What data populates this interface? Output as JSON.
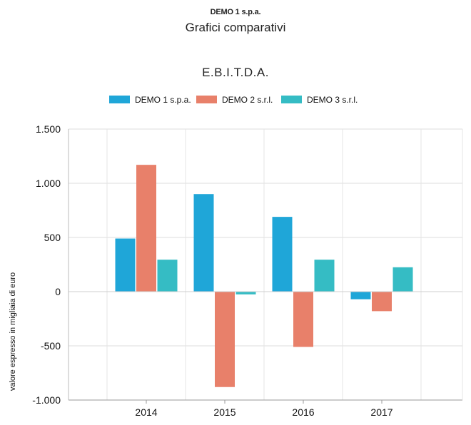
{
  "header": {
    "company": "DEMO 1 s.p.a.",
    "subtitle": "Grafici comparativi"
  },
  "chart_data": {
    "type": "bar",
    "title": "E.B.I.T.D.A.",
    "xlabel": "",
    "ylabel": "valore espresso in migliaia di euro",
    "categories": [
      "2014",
      "2015",
      "2016",
      "2017"
    ],
    "series": [
      {
        "name": "DEMO 1 s.p.a.",
        "color": "#1FA6D8",
        "values": [
          490,
          900,
          690,
          -70
        ]
      },
      {
        "name": "DEMO 2 s.r.l.",
        "color": "#E8806A",
        "values": [
          1170,
          -880,
          -510,
          -180
        ]
      },
      {
        "name": "DEMO 3 s.r.l.",
        "color": "#35BCC4",
        "values": [
          295,
          -25,
          295,
          225
        ]
      }
    ],
    "ylim": [
      -1000,
      1500
    ],
    "yticks": [
      1500,
      1000,
      500,
      0,
      -500,
      -1000
    ],
    "ytick_labels": [
      "1.500",
      "1.000",
      "500",
      "0",
      "-500",
      "-1.000"
    ],
    "grid": true,
    "legend_position": "top-center"
  }
}
